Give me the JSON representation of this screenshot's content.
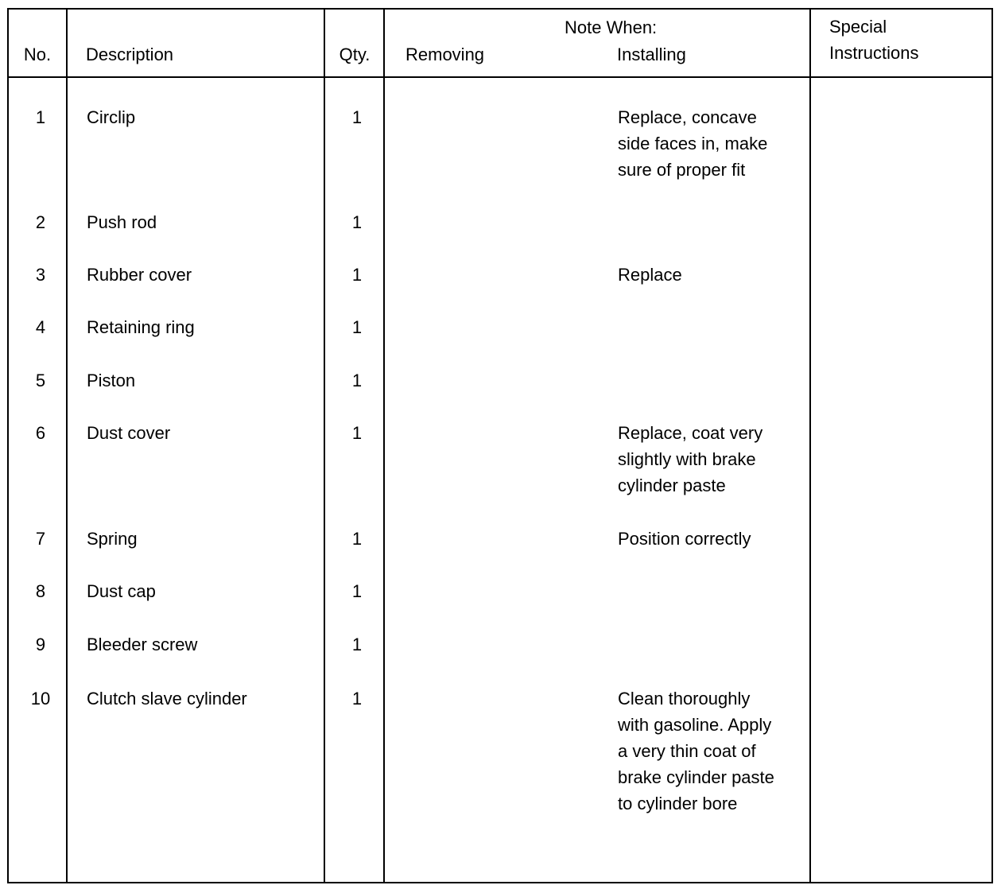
{
  "header": {
    "no": "No.",
    "description": "Description",
    "qty": "Qty.",
    "note_when": "Note When:",
    "removing": "Removing",
    "installing": "Installing",
    "special": "Special\nInstructions"
  },
  "rows": [
    {
      "no": "1",
      "description": "Circlip",
      "qty": "1",
      "removing": "",
      "installing": "Replace, concave\nside faces in, make\nsure of proper fit",
      "special": ""
    },
    {
      "no": "2",
      "description": "Push rod",
      "qty": "1",
      "removing": "",
      "installing": "",
      "special": ""
    },
    {
      "no": "3",
      "description": "Rubber cover",
      "qty": "1",
      "removing": "",
      "installing": "Replace",
      "special": ""
    },
    {
      "no": "4",
      "description": "Retaining ring",
      "qty": "1",
      "removing": "",
      "installing": "",
      "special": ""
    },
    {
      "no": "5",
      "description": "Piston",
      "qty": "1",
      "removing": "",
      "installing": "",
      "special": ""
    },
    {
      "no": "6",
      "description": "Dust cover",
      "qty": "1",
      "removing": "",
      "installing": "Replace, coat very\nslightly with brake\ncylinder paste",
      "special": ""
    },
    {
      "no": "7",
      "description": "Spring",
      "qty": "1",
      "removing": "",
      "installing": "Position correctly",
      "special": ""
    },
    {
      "no": "8",
      "description": "Dust cap",
      "qty": "1",
      "removing": "",
      "installing": "",
      "special": ""
    },
    {
      "no": "9",
      "description": "Bleeder screw",
      "qty": "1",
      "removing": "",
      "installing": "",
      "special": ""
    },
    {
      "no": "10",
      "description": "Clutch slave cylinder",
      "qty": "1",
      "removing": "",
      "installing": "Clean thoroughly\nwith gasoline. Apply\na very thin coat of\nbrake cylinder paste\nto cylinder bore",
      "special": ""
    }
  ]
}
